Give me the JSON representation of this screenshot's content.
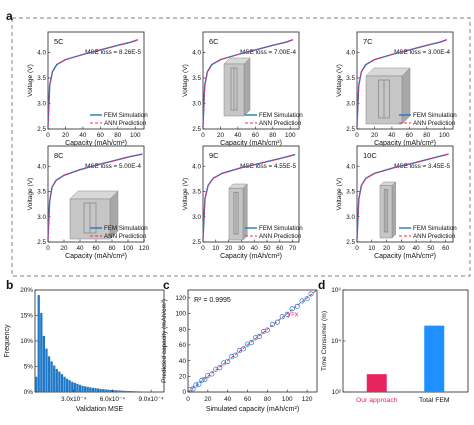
{
  "panel_letters": [
    "a",
    "b",
    "c",
    "d"
  ],
  "colors": {
    "fem": "#1f77c8",
    "ann": "#e0306a",
    "scatter": "#1f77c8",
    "bar_ours": "#e8245c",
    "bar_fem": "#1e90ff",
    "dash_box": "#9a9a9a"
  },
  "legend": {
    "fem": "FEM Simulation",
    "ann": "ANN Prediction"
  },
  "chart_data": [
    {
      "type": "line",
      "panel": "a",
      "rate": "5C",
      "mse": "MSE loss = 8.26E-5",
      "xlabel": "Capacity (mAh/cm²)",
      "ylabel": "Voltage (V)",
      "xlim": [
        0,
        110
      ],
      "ylim": [
        2.5,
        4.4
      ],
      "xticks": [
        0,
        20,
        40,
        60,
        80,
        100
      ],
      "yticks": [
        2.5,
        3.0,
        3.5,
        4.0
      ],
      "x": [
        0,
        2,
        5,
        10,
        20,
        40,
        60,
        80,
        95,
        103
      ],
      "series": [
        {
          "name": "FEM Simulation",
          "values": [
            2.55,
            3.35,
            3.62,
            3.76,
            3.86,
            3.96,
            4.05,
            4.14,
            4.2,
            4.25
          ]
        },
        {
          "name": "ANN Prediction",
          "values": [
            2.55,
            3.35,
            3.62,
            3.76,
            3.86,
            3.96,
            4.05,
            4.14,
            4.2,
            4.25
          ]
        }
      ]
    },
    {
      "type": "line",
      "panel": "a",
      "rate": "6C",
      "mse": "MSE loss = 7.00E-4",
      "xlabel": "Capacity (mAh/cm²)",
      "ylabel": "Voltage (V)",
      "xlim": [
        0,
        110
      ],
      "ylim": [
        2.5,
        4.4
      ],
      "xticks": [
        0,
        20,
        40,
        60,
        80,
        100
      ],
      "yticks": [
        2.5,
        3.0,
        3.5,
        4.0
      ],
      "x": [
        0,
        2,
        5,
        10,
        20,
        40,
        60,
        80,
        95,
        103
      ],
      "series": [
        {
          "name": "FEM Simulation",
          "values": [
            2.55,
            3.35,
            3.62,
            3.76,
            3.86,
            3.96,
            4.05,
            4.14,
            4.2,
            4.25
          ]
        },
        {
          "name": "ANN Prediction",
          "values": [
            2.55,
            3.35,
            3.62,
            3.76,
            3.86,
            3.96,
            4.05,
            4.14,
            4.2,
            4.25
          ]
        }
      ]
    },
    {
      "type": "line",
      "panel": "a",
      "rate": "7C",
      "mse": "MSE loss = 3.00E-4",
      "xlabel": "Capacity (mAh/cm²)",
      "ylabel": "Voltage (V)",
      "xlim": [
        0,
        110
      ],
      "ylim": [
        2.5,
        4.4
      ],
      "xticks": [
        0,
        20,
        40,
        60,
        80,
        100
      ],
      "yticks": [
        2.5,
        3.0,
        3.5,
        4.0
      ],
      "x": [
        0,
        2,
        5,
        10,
        20,
        40,
        60,
        80,
        95,
        103
      ],
      "series": [
        {
          "name": "FEM Simulation",
          "values": [
            2.55,
            3.35,
            3.62,
            3.76,
            3.86,
            3.96,
            4.05,
            4.14,
            4.2,
            4.25
          ]
        },
        {
          "name": "ANN Prediction",
          "values": [
            2.55,
            3.35,
            3.62,
            3.76,
            3.86,
            3.96,
            4.05,
            4.14,
            4.2,
            4.25
          ]
        }
      ]
    },
    {
      "type": "line",
      "panel": "a",
      "rate": "8C",
      "mse": "MSE loss = 5.00E-4",
      "xlabel": "Capacity (mAh/cm²)",
      "ylabel": "Voltage (V)",
      "xlim": [
        0,
        120
      ],
      "ylim": [
        2.5,
        4.4
      ],
      "xticks": [
        0,
        20,
        40,
        60,
        80,
        100,
        120
      ],
      "yticks": [
        2.5,
        3.0,
        3.5,
        4.0
      ],
      "x": [
        0,
        2,
        5,
        10,
        20,
        40,
        60,
        80,
        100,
        118
      ],
      "series": [
        {
          "name": "FEM Simulation",
          "values": [
            2.55,
            3.3,
            3.58,
            3.72,
            3.82,
            3.93,
            4.02,
            4.1,
            4.18,
            4.24
          ]
        },
        {
          "name": "ANN Prediction",
          "values": [
            2.55,
            3.3,
            3.58,
            3.72,
            3.82,
            3.93,
            4.02,
            4.1,
            4.18,
            4.24
          ]
        }
      ]
    },
    {
      "type": "line",
      "panel": "a",
      "rate": "9C",
      "mse": "MSE loss = 4.55E-5",
      "xlabel": "Capacity (mAh/cm²)",
      "ylabel": "Voltage (V)",
      "xlim": [
        0,
        75
      ],
      "ylim": [
        2.5,
        4.4
      ],
      "xticks": [
        0,
        10,
        20,
        30,
        40,
        50,
        60,
        70
      ],
      "yticks": [
        2.5,
        3.0,
        3.5,
        4.0
      ],
      "x": [
        0,
        1.5,
        4,
        8,
        15,
        30,
        45,
        60,
        72
      ],
      "series": [
        {
          "name": "FEM Simulation",
          "values": [
            2.55,
            3.35,
            3.62,
            3.76,
            3.86,
            3.97,
            4.06,
            4.15,
            4.23
          ]
        },
        {
          "name": "ANN Prediction",
          "values": [
            2.55,
            3.35,
            3.62,
            3.76,
            3.86,
            3.97,
            4.06,
            4.15,
            4.23
          ]
        }
      ]
    },
    {
      "type": "line",
      "panel": "a",
      "rate": "10C",
      "mse": "MSE loss = 3.45E-5",
      "xlabel": "Capacity (mAh/cm²)",
      "ylabel": "Voltage (V)",
      "xlim": [
        0,
        65
      ],
      "ylim": [
        2.5,
        4.4
      ],
      "xticks": [
        0,
        10,
        20,
        30,
        40,
        50,
        60
      ],
      "yticks": [
        2.5,
        3.0,
        3.5,
        4.0
      ],
      "x": [
        0,
        1.2,
        3,
        6,
        12,
        25,
        38,
        50,
        62
      ],
      "series": [
        {
          "name": "FEM Simulation",
          "values": [
            2.55,
            3.35,
            3.62,
            3.76,
            3.86,
            3.97,
            4.06,
            4.15,
            4.24
          ]
        },
        {
          "name": "ANN Prediction",
          "values": [
            2.55,
            3.35,
            3.62,
            3.76,
            3.86,
            3.97,
            4.06,
            4.15,
            4.24
          ]
        }
      ]
    },
    {
      "type": "bar",
      "panel": "b",
      "subtype": "histogram",
      "xlabel": "Validation MSE",
      "ylabel": "Frequency",
      "xlim": [
        0,
        0.001
      ],
      "ylim": [
        0,
        0.2
      ],
      "xticks": [
        0.0003,
        0.0006,
        0.0009
      ],
      "xtick_labels": [
        "3.0x10⁻⁴",
        "6.0x10⁻⁴",
        "9.0x10⁻⁴"
      ],
      "yticks": [
        0,
        0.05,
        0.1,
        0.15,
        0.2
      ],
      "ytick_labels": [
        "0%",
        "5%",
        "10%",
        "15%",
        "20%"
      ],
      "bin_width": 2e-05,
      "values": [
        0.03,
        0.19,
        0.155,
        0.11,
        0.085,
        0.07,
        0.06,
        0.052,
        0.045,
        0.04,
        0.035,
        0.03,
        0.026,
        0.023,
        0.02,
        0.018,
        0.016,
        0.014,
        0.012,
        0.011,
        0.01,
        0.009,
        0.008,
        0.0075,
        0.007,
        0.006,
        0.0055,
        0.005,
        0.0045,
        0.004,
        0.0038,
        0.0034,
        0.003,
        0.0028,
        0.0025,
        0.0022,
        0.002,
        0.0018,
        0.0016,
        0.0014,
        0.0012,
        0.001,
        0.0009,
        0.0008,
        0.0007,
        0.0006
      ]
    },
    {
      "type": "scatter",
      "panel": "c",
      "xlabel": "Simulated capacity (mAh/cm²)",
      "ylabel": "Predicted capacity (mAh/cm²)",
      "xlim": [
        0,
        130
      ],
      "ylim": [
        0,
        130
      ],
      "xticks": [
        0,
        20,
        40,
        60,
        80,
        100,
        120
      ],
      "yticks": [
        0,
        20,
        40,
        60,
        80,
        100,
        120
      ],
      "annotation": "R² = 0.9995",
      "line_label": "y=x",
      "x": [
        2,
        5,
        8,
        11,
        14,
        17,
        20,
        24,
        28,
        32,
        36,
        40,
        44,
        48,
        52,
        56,
        60,
        64,
        68,
        72,
        76,
        80,
        85,
        90,
        95,
        100,
        105,
        110,
        115,
        120,
        124
      ],
      "y": [
        3,
        4,
        9,
        10,
        15,
        16,
        21,
        23,
        29,
        31,
        37,
        39,
        45,
        47,
        53,
        55,
        61,
        63,
        69,
        71,
        77,
        79,
        86,
        89,
        96,
        99,
        106,
        109,
        116,
        119,
        125
      ]
    },
    {
      "type": "bar",
      "panel": "d",
      "ylabel": "Time Consumer (m)",
      "yscale": "log",
      "ylim": [
        100,
        1000000
      ],
      "yticks": [
        100,
        10000,
        1000000
      ],
      "ytick_labels": [
        "10²",
        "10⁴",
        "10⁶"
      ],
      "categories": [
        "Our approach",
        "Total FEM"
      ],
      "values": [
        500,
        40000
      ]
    }
  ]
}
